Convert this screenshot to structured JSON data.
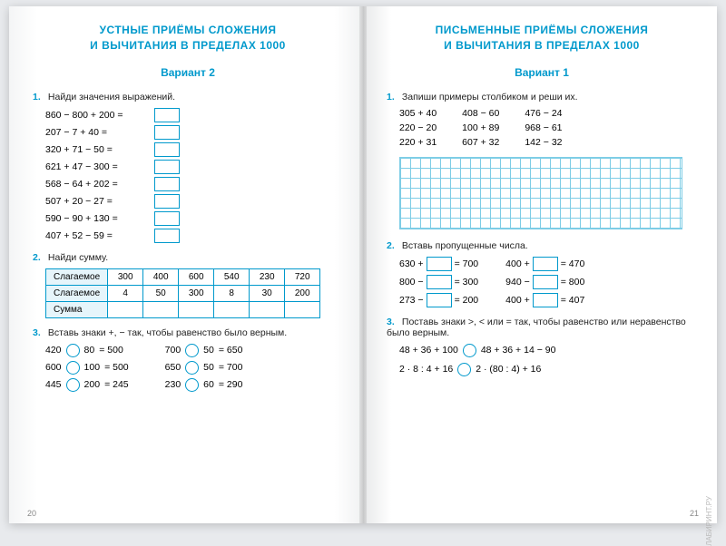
{
  "left": {
    "heading": "УСТНЫЕ ПРИЁМЫ СЛОЖЕНИЯ\nИ ВЫЧИТАНИЯ В ПРЕДЕЛАХ 1000",
    "variant": "Вариант 2",
    "task1": {
      "num": "1.",
      "text": "Найди значения выражений."
    },
    "exprs": [
      "860 − 800 + 200 =",
      "207 − 7 + 40 =",
      "320 + 71 − 50 =",
      "621 + 47 − 300 =",
      "568 − 64 + 202 =",
      "507 + 20 − 27 =",
      "590 − 90 + 130 =",
      "407 + 52 − 59 ="
    ],
    "task2": {
      "num": "2.",
      "text": "Найди сумму."
    },
    "sumtable": {
      "row1_label": "Слагаемое",
      "row1": [
        "300",
        "400",
        "600",
        "540",
        "230",
        "720"
      ],
      "row2_label": "Слагаемое",
      "row2": [
        "4",
        "50",
        "300",
        "8",
        "30",
        "200"
      ],
      "row3_label": "Сумма"
    },
    "task3": {
      "num": "3.",
      "text": "Вставь знаки +, − так, чтобы равенство было верным."
    },
    "circ_left": [
      {
        "a": "420",
        "b": "80",
        "r": "= 500"
      },
      {
        "a": "600",
        "b": "100",
        "r": "= 500"
      },
      {
        "a": "445",
        "b": "200",
        "r": "= 245"
      }
    ],
    "circ_right": [
      {
        "a": "700",
        "b": "50",
        "r": "= 650"
      },
      {
        "a": "650",
        "b": "50",
        "r": "= 700"
      },
      {
        "a": "230",
        "b": "60",
        "r": "= 290"
      }
    ],
    "pagenum": "20"
  },
  "right": {
    "heading": "ПИСЬМЕННЫЕ ПРИЁМЫ СЛОЖЕНИЯ\nИ ВЫЧИТАНИЯ В ПРЕДЕЛАХ 1000",
    "variant": "Вариант 1",
    "task1": {
      "num": "1.",
      "text": "Запиши примеры столбиком и реши их."
    },
    "cols": [
      [
        "305 + 40",
        "220 − 20",
        "220 + 31"
      ],
      [
        "408 − 60",
        "100 + 89",
        "607 + 32"
      ],
      [
        "476 − 24",
        "968 − 61",
        "142 − 32"
      ]
    ],
    "task2": {
      "num": "2.",
      "text": "Вставь пропущенные числа."
    },
    "fill_left": [
      {
        "a": "630 +",
        "r": "= 700"
      },
      {
        "a": "800 −",
        "r": "= 300"
      },
      {
        "a": "273 −",
        "r": "= 200"
      }
    ],
    "fill_right": [
      {
        "a": "400 +",
        "r": "= 470"
      },
      {
        "a": "940 −",
        "r": "= 800"
      },
      {
        "a": "400 +",
        "r": "= 407"
      }
    ],
    "task3": {
      "num": "3.",
      "text": "Поставь знаки >, < или = так, чтобы равенство или неравенство было верным."
    },
    "ineq": [
      {
        "l": "48 + 36 + 100",
        "r": "48 + 36 + 14 − 90"
      },
      {
        "l": "2 · 8 : 4 + 16",
        "r": "2 · (80 : 4) + 16"
      }
    ],
    "pagenum": "21",
    "watermark": "ЛАБИРИНТ.РУ"
  },
  "colors": {
    "accent": "#0099cc",
    "grid": "#7ecde6",
    "header_bg": "#e6f5fb"
  }
}
